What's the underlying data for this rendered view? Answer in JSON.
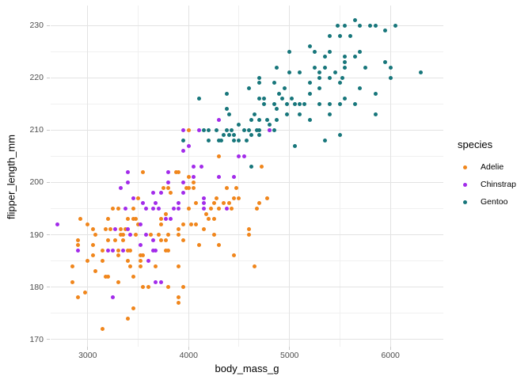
{
  "chart_data": {
    "type": "scatter",
    "title": "",
    "xlabel": "body_mass_g",
    "ylabel": "flipper_length_mm",
    "legend_title": "species",
    "legend_position": "right",
    "grid": true,
    "background": "#ffffff",
    "gridline_major_color": "#e3e3e3",
    "gridline_minor_color": "#f0f0f0",
    "x_axis": {
      "min": 2633,
      "max": 6524,
      "major_breaks": [
        3000,
        4000,
        5000,
        6000
      ],
      "minor_breaks": [
        3500,
        4500,
        5500
      ],
      "tick_labels": [
        "3000",
        "4000",
        "5000",
        "6000"
      ]
    },
    "y_axis": {
      "min": 168.6,
      "max": 233.8,
      "major_breaks": [
        170,
        180,
        190,
        200,
        210,
        220,
        230
      ],
      "minor_breaks": [
        175,
        185,
        195,
        205,
        215,
        225
      ],
      "tick_labels": [
        "170",
        "180",
        "190",
        "200",
        "210",
        "220",
        "230"
      ]
    },
    "series": [
      {
        "name": "Adelie",
        "color": "#F0861C",
        "points": [
          [
            3550,
            202
          ],
          [
            3875,
            202
          ],
          [
            3750,
            199
          ],
          [
            3800,
            199
          ],
          [
            3900,
            202
          ],
          [
            4000,
            210
          ],
          [
            4300,
            205
          ],
          [
            4725,
            203
          ],
          [
            4000,
            201
          ],
          [
            4050,
            200
          ],
          [
            3975,
            199
          ],
          [
            4475,
            199
          ],
          [
            3500,
            197
          ],
          [
            3825,
            198
          ],
          [
            3250,
            195
          ],
          [
            3300,
            195
          ],
          [
            3450,
            195
          ],
          [
            3775,
            194
          ],
          [
            2925,
            193
          ],
          [
            3000,
            192
          ],
          [
            3200,
            193
          ],
          [
            3400,
            193
          ],
          [
            3450,
            193
          ],
          [
            3475,
            193
          ],
          [
            3500,
            192
          ],
          [
            3725,
            193
          ],
          [
            3725,
            192
          ],
          [
            3050,
            191
          ],
          [
            3075,
            190
          ],
          [
            3175,
            191
          ],
          [
            3225,
            191
          ],
          [
            3325,
            191
          ],
          [
            3375,
            191
          ],
          [
            3325,
            190
          ],
          [
            3350,
            190
          ],
          [
            3475,
            190
          ],
          [
            2900,
            189
          ],
          [
            3200,
            189
          ],
          [
            3275,
            189
          ],
          [
            3350,
            189
          ],
          [
            3625,
            190
          ],
          [
            3700,
            190
          ],
          [
            3800,
            190
          ],
          [
            3725,
            189
          ],
          [
            3775,
            189
          ],
          [
            2900,
            188
          ],
          [
            3050,
            188
          ],
          [
            3050,
            186
          ],
          [
            3150,
            187
          ],
          [
            3300,
            187
          ],
          [
            3300,
            186
          ],
          [
            3400,
            187
          ],
          [
            3425,
            187
          ],
          [
            3525,
            186
          ],
          [
            3550,
            186
          ],
          [
            3775,
            187
          ],
          [
            3800,
            187
          ],
          [
            3000,
            185
          ],
          [
            3150,
            185
          ],
          [
            2850,
            184
          ],
          [
            3075,
            183
          ],
          [
            3400,
            185
          ],
          [
            3425,
            184
          ],
          [
            3525,
            184
          ],
          [
            3525,
            185
          ],
          [
            3675,
            184
          ],
          [
            3175,
            182
          ],
          [
            3200,
            182
          ],
          [
            2850,
            181
          ],
          [
            3300,
            181
          ],
          [
            3450,
            182
          ],
          [
            3550,
            180
          ],
          [
            3600,
            180
          ],
          [
            3800,
            180
          ],
          [
            2975,
            179
          ],
          [
            2900,
            178
          ],
          [
            3900,
            178
          ],
          [
            3900,
            177
          ],
          [
            3450,
            176
          ],
          [
            3400,
            174
          ],
          [
            3150,
            172
          ],
          [
            4000,
            199
          ],
          [
            4050,
            199
          ],
          [
            4375,
            199
          ],
          [
            4275,
            197
          ],
          [
            4450,
            197
          ],
          [
            4500,
            197
          ],
          [
            4075,
            196
          ],
          [
            4250,
            196
          ],
          [
            4350,
            196
          ],
          [
            4400,
            196
          ],
          [
            4425,
            195
          ],
          [
            4000,
            195
          ],
          [
            4225,
            195
          ],
          [
            4300,
            195
          ],
          [
            4675,
            195
          ],
          [
            4700,
            196
          ],
          [
            4775,
            197
          ],
          [
            4175,
            194
          ],
          [
            4250,
            193
          ],
          [
            4200,
            193
          ],
          [
            3950,
            192
          ],
          [
            4025,
            192
          ],
          [
            4075,
            192
          ],
          [
            4150,
            191
          ],
          [
            3900,
            191
          ],
          [
            3900,
            190
          ],
          [
            4250,
            190
          ],
          [
            4600,
            191
          ],
          [
            4600,
            190
          ],
          [
            3950,
            189
          ],
          [
            4100,
            188
          ],
          [
            4300,
            188
          ],
          [
            4450,
            186
          ],
          [
            3900,
            184
          ],
          [
            4650,
            184
          ],
          [
            3950,
            180
          ]
        ]
      },
      {
        "name": "Chinstrap",
        "color": "#A22BEA",
        "points": [
          [
            3400,
            202
          ],
          [
            3800,
            202
          ],
          [
            3400,
            200
          ],
          [
            3800,
            200
          ],
          [
            3325,
            199
          ],
          [
            4300,
            212
          ],
          [
            3950,
            210
          ],
          [
            4100,
            210
          ],
          [
            4800,
            210
          ],
          [
            4000,
            207
          ],
          [
            3950,
            206
          ],
          [
            4500,
            205
          ],
          [
            4550,
            205
          ],
          [
            4050,
            203
          ],
          [
            4125,
            203
          ],
          [
            4300,
            201
          ],
          [
            4450,
            201
          ],
          [
            4050,
            201
          ],
          [
            3950,
            200
          ],
          [
            3650,
            198
          ],
          [
            3725,
            198
          ],
          [
            3950,
            198
          ],
          [
            3450,
            197
          ],
          [
            4150,
            197
          ],
          [
            3550,
            196
          ],
          [
            3675,
            196
          ],
          [
            3900,
            196
          ],
          [
            4150,
            196
          ],
          [
            3375,
            195
          ],
          [
            3575,
            195
          ],
          [
            3650,
            195
          ],
          [
            3700,
            195
          ],
          [
            3850,
            195
          ],
          [
            3900,
            195
          ],
          [
            4150,
            195
          ],
          [
            4375,
            195
          ],
          [
            2700,
            192
          ],
          [
            3525,
            192
          ],
          [
            3275,
            191
          ],
          [
            3400,
            191
          ],
          [
            3425,
            190
          ],
          [
            3575,
            190
          ],
          [
            3650,
            189
          ],
          [
            3775,
            193
          ],
          [
            3825,
            193
          ],
          [
            2900,
            187
          ],
          [
            3200,
            187
          ],
          [
            3250,
            187
          ],
          [
            3350,
            187
          ],
          [
            3525,
            188
          ],
          [
            3650,
            187
          ],
          [
            3675,
            187
          ],
          [
            3600,
            185
          ],
          [
            3675,
            181
          ],
          [
            3725,
            181
          ],
          [
            3250,
            178
          ]
        ]
      },
      {
        "name": "Gentoo",
        "color": "#17767B",
        "points": [
          [
            5200,
            226
          ],
          [
            5000,
            225
          ],
          [
            4875,
            222
          ],
          [
            5000,
            221
          ],
          [
            5100,
            221
          ],
          [
            4700,
            220
          ],
          [
            4850,
            219
          ],
          [
            4700,
            219
          ],
          [
            4600,
            218
          ],
          [
            4950,
            218
          ],
          [
            5200,
            217
          ],
          [
            4900,
            217
          ],
          [
            4375,
            217
          ],
          [
            4100,
            216
          ],
          [
            4700,
            216
          ],
          [
            4750,
            216
          ],
          [
            4925,
            216
          ],
          [
            5025,
            216
          ],
          [
            4750,
            215
          ],
          [
            4850,
            215
          ],
          [
            4975,
            215
          ],
          [
            5050,
            215
          ],
          [
            5100,
            215
          ],
          [
            5150,
            215
          ],
          [
            4375,
            214
          ],
          [
            4400,
            213
          ],
          [
            4875,
            214
          ],
          [
            4975,
            213
          ],
          [
            4650,
            213
          ],
          [
            5100,
            213
          ],
          [
            4625,
            212
          ],
          [
            4700,
            212
          ],
          [
            4775,
            212
          ],
          [
            4800,
            211
          ],
          [
            4875,
            212
          ],
          [
            5200,
            212
          ],
          [
            4375,
            210
          ],
          [
            4425,
            210
          ],
          [
            4500,
            211
          ],
          [
            4550,
            210
          ],
          [
            4600,
            210
          ],
          [
            4625,
            209
          ],
          [
            4700,
            210
          ],
          [
            4700,
            209
          ],
          [
            4800,
            210
          ],
          [
            4850,
            210
          ],
          [
            4350,
            209
          ],
          [
            4400,
            209
          ],
          [
            4450,
            209
          ],
          [
            4575,
            208
          ],
          [
            4325,
            208
          ],
          [
            5050,
            207
          ],
          [
            4625,
            203
          ],
          [
            3950,
            208
          ],
          [
            4150,
            210
          ],
          [
            4200,
            210
          ],
          [
            4275,
            210
          ],
          [
            4675,
            210
          ],
          [
            4200,
            208
          ],
          [
            4300,
            208
          ],
          [
            4450,
            208
          ],
          [
            4500,
            208
          ],
          [
            5650,
            231
          ],
          [
            5475,
            230
          ],
          [
            5550,
            230
          ],
          [
            5700,
            230
          ],
          [
            5800,
            230
          ],
          [
            5850,
            230
          ],
          [
            5950,
            229
          ],
          [
            6050,
            230
          ],
          [
            5400,
            228
          ],
          [
            5500,
            228
          ],
          [
            5600,
            228
          ],
          [
            5250,
            225
          ],
          [
            5400,
            225
          ],
          [
            5350,
            224
          ],
          [
            5550,
            224
          ],
          [
            5650,
            224
          ],
          [
            5700,
            225
          ],
          [
            5550,
            223
          ],
          [
            5950,
            223
          ],
          [
            5250,
            222
          ],
          [
            5350,
            222
          ],
          [
            5550,
            222
          ],
          [
            5750,
            222
          ],
          [
            6000,
            222
          ],
          [
            6300,
            221
          ],
          [
            5300,
            221
          ],
          [
            5450,
            221
          ],
          [
            5300,
            220
          ],
          [
            5400,
            220
          ],
          [
            5525,
            220
          ],
          [
            6000,
            220
          ],
          [
            5200,
            219
          ],
          [
            5500,
            219
          ],
          [
            5300,
            218
          ],
          [
            5700,
            218
          ],
          [
            5850,
            217
          ],
          [
            5550,
            216
          ],
          [
            5500,
            215
          ],
          [
            5300,
            215
          ],
          [
            5400,
            215
          ],
          [
            5650,
            215
          ],
          [
            5400,
            213
          ],
          [
            5850,
            213
          ],
          [
            5500,
            209
          ],
          [
            5350,
            208
          ]
        ]
      }
    ],
    "z_order": [
      "Adelie",
      "Gentoo",
      "Chinstrap"
    ]
  }
}
